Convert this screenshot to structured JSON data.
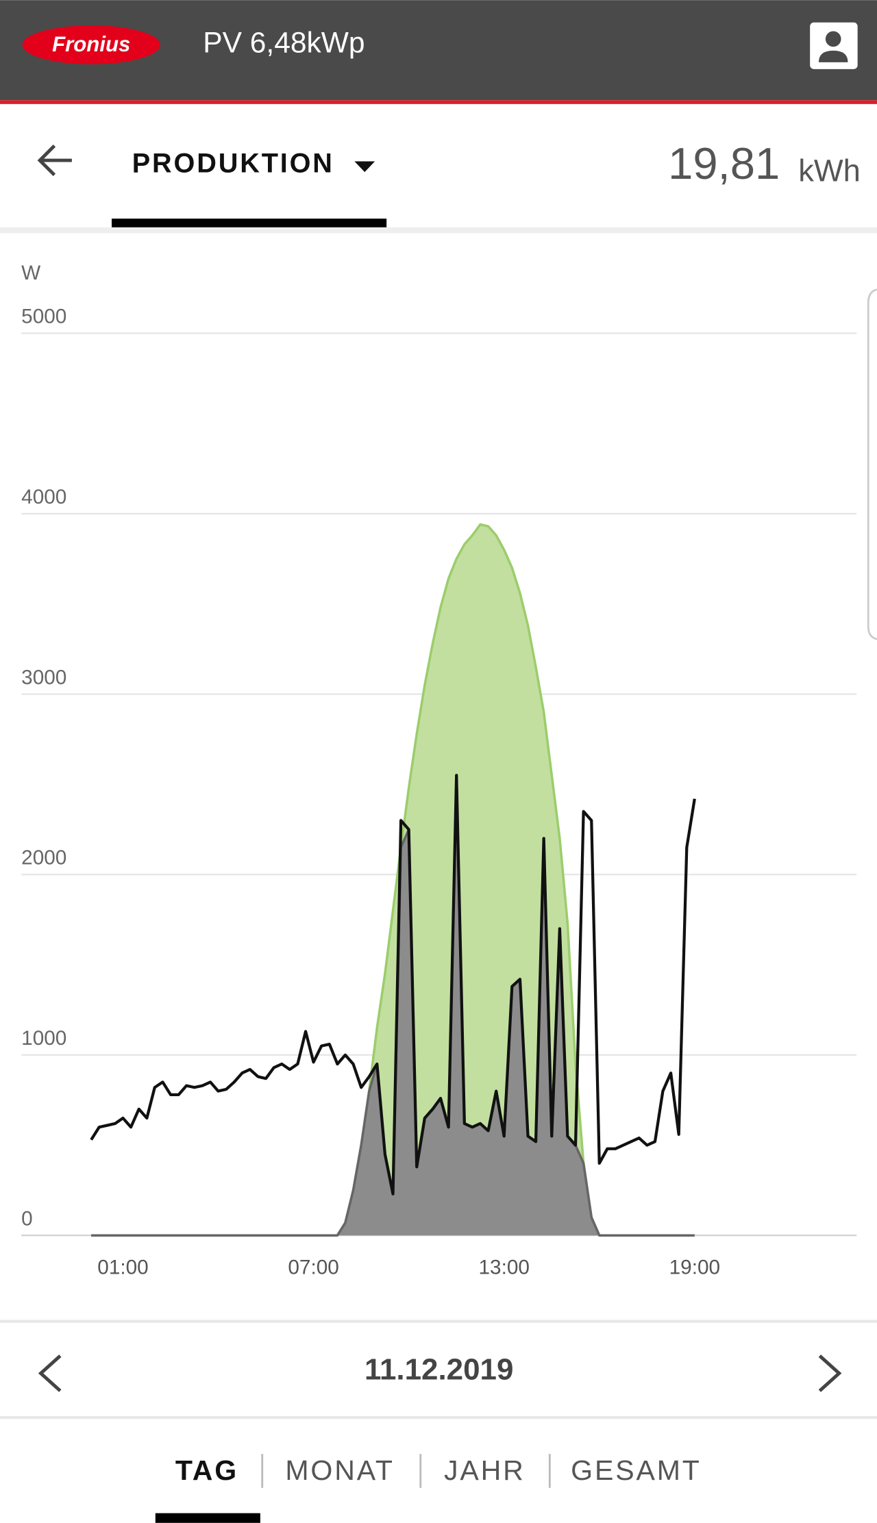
{
  "header": {
    "logo": "Fronius",
    "title": "PV 6,48kWp"
  },
  "view": {
    "title": "PRODUKTION",
    "total": "19,81",
    "unit": "kWh"
  },
  "chart_data": {
    "type": "line",
    "y_label": "W",
    "x": [
      0,
      0.25,
      0.5,
      0.75,
      1,
      1.25,
      1.5,
      1.75,
      2,
      2.25,
      2.5,
      2.75,
      3,
      3.25,
      3.5,
      3.75,
      4,
      4.25,
      4.5,
      4.75,
      5,
      5.25,
      5.5,
      5.75,
      6,
      6.25,
      6.5,
      6.75,
      7,
      7.25,
      7.5,
      7.75,
      8,
      8.25,
      8.5,
      8.75,
      9,
      9.25,
      9.5,
      9.75,
      10,
      10.25,
      10.5,
      10.75,
      11,
      11.25,
      11.5,
      11.75,
      12,
      12.25,
      12.5,
      12.75,
      13,
      13.25,
      13.5,
      13.75,
      14,
      14.25,
      14.5,
      14.75,
      15,
      15.25,
      15.5,
      15.75,
      16,
      16.25,
      16.5,
      16.75,
      17,
      17.25,
      17.5,
      17.75,
      18,
      18.25,
      18.5,
      18.75,
      19
    ],
    "series": [
      {
        "color": "#c2dfa0",
        "line_color": "#9ccd6c",
        "area": true,
        "values": [
          0,
          0,
          0,
          0,
          0,
          0,
          0,
          0,
          0,
          0,
          0,
          0,
          0,
          0,
          0,
          0,
          0,
          0,
          0,
          0,
          0,
          0,
          0,
          0,
          0,
          0,
          0,
          0,
          0,
          0,
          0,
          0,
          70,
          250,
          500,
          800,
          1150,
          1450,
          1800,
          2150,
          2480,
          2780,
          3050,
          3280,
          3480,
          3640,
          3750,
          3830,
          3880,
          3940,
          3930,
          3880,
          3800,
          3700,
          3560,
          3380,
          3150,
          2900,
          2550,
          2200,
          1730,
          950,
          400,
          100,
          0,
          0,
          0,
          0,
          0,
          0,
          0,
          0,
          0,
          0,
          0,
          0,
          0
        ]
      },
      {
        "color": "#8c8c8c",
        "line_color": "#666666",
        "area": true,
        "values": [
          0,
          0,
          0,
          0,
          0,
          0,
          0,
          0,
          0,
          0,
          0,
          0,
          0,
          0,
          0,
          0,
          0,
          0,
          0,
          0,
          0,
          0,
          0,
          0,
          0,
          0,
          0,
          0,
          0,
          0,
          0,
          0,
          70,
          250,
          500,
          800,
          950,
          450,
          230,
          2150,
          2250,
          380,
          650,
          700,
          760,
          600,
          2550,
          620,
          600,
          620,
          580,
          800,
          550,
          1380,
          1420,
          550,
          520,
          2200,
          550,
          1700,
          550,
          500,
          400,
          100,
          0,
          0,
          0,
          0,
          0,
          0,
          0,
          0,
          0,
          0,
          0,
          0,
          0
        ]
      },
      {
        "color": "#111111",
        "line_color": "#111111",
        "area": false,
        "values": [
          530,
          600,
          610,
          620,
          650,
          600,
          700,
          650,
          820,
          850,
          780,
          780,
          830,
          820,
          830,
          850,
          800,
          810,
          850,
          900,
          920,
          880,
          870,
          930,
          950,
          920,
          950,
          1130,
          960,
          1050,
          1060,
          950,
          1000,
          950,
          820,
          880,
          950,
          450,
          230,
          2300,
          2250,
          380,
          650,
          700,
          760,
          600,
          2550,
          620,
          600,
          620,
          580,
          800,
          550,
          1380,
          1420,
          550,
          520,
          2200,
          550,
          1700,
          550,
          500,
          2350,
          2300,
          400,
          480,
          480,
          500,
          520,
          540,
          500,
          520,
          800,
          900,
          560,
          2150,
          2420
        ]
      }
    ],
    "xlim": [
      -2.2,
      24.1
    ],
    "xticks": [
      {
        "value": 1,
        "label": "01:00"
      },
      {
        "value": 7,
        "label": "07:00"
      },
      {
        "value": 13,
        "label": "13:00"
      },
      {
        "value": 19,
        "label": "19:00"
      }
    ],
    "ylim": [
      0,
      5000
    ],
    "yticks": [
      0,
      1000,
      2000,
      3000,
      4000,
      5000
    ],
    "grid": true
  },
  "date": "11.12.2019",
  "periods": [
    "TAG",
    "MONAT",
    "JAHR",
    "GESAMT"
  ]
}
